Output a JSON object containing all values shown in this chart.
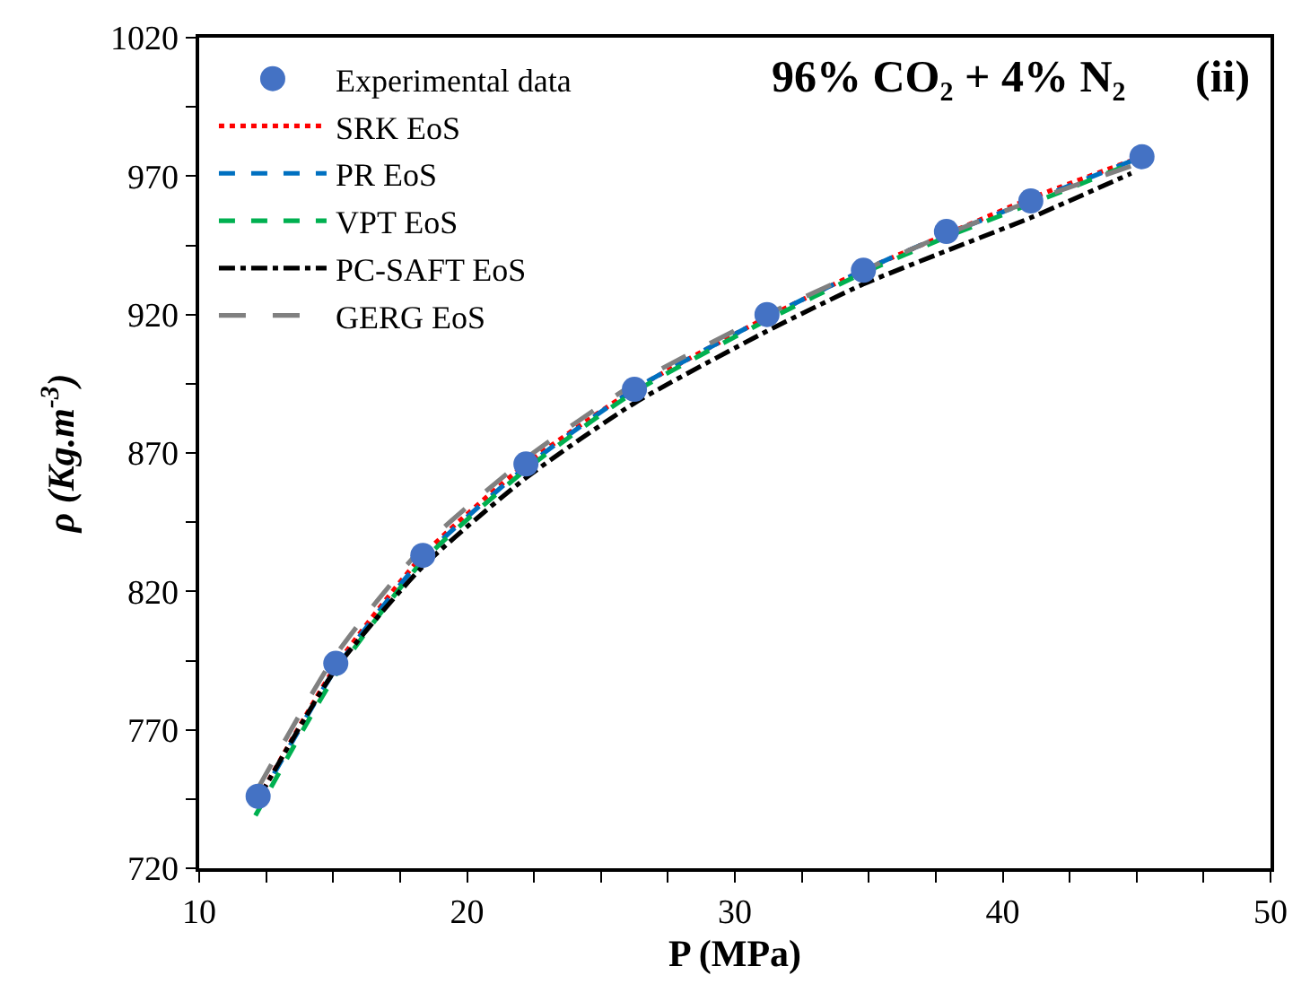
{
  "chart_data": {
    "type": "line",
    "xlabel": "P (MPa)",
    "ylabel": "ρ (Kg.m$^{-3}$)",
    "annotations": [
      "96% CO₂ + 4% N₂",
      "(ii)"
    ],
    "xlim": [
      10,
      50
    ],
    "xticks": [
      10,
      {
        "value": 12.5,
        "label": null
      },
      {
        "value": 15,
        "label": null
      },
      {
        "value": 17.5,
        "label": null
      },
      20,
      {
        "value": 22.5,
        "label": null
      },
      {
        "value": 25,
        "label": null
      },
      {
        "value": 27.5,
        "label": null
      },
      30,
      {
        "value": 32.5,
        "label": null
      },
      {
        "value": 35,
        "label": null
      },
      {
        "value": 37.5,
        "label": null
      },
      40,
      {
        "value": 42.5,
        "label": null
      },
      {
        "value": 45,
        "label": null
      },
      {
        "value": 47.5,
        "label": null
      },
      50
    ],
    "ylim": [
      720,
      1020
    ],
    "yticks": [
      720,
      {
        "value": 745,
        "label": null
      },
      770,
      {
        "value": 795,
        "label": null
      },
      820,
      {
        "value": 845,
        "label": null
      },
      870,
      {
        "value": 895,
        "label": null
      },
      920,
      {
        "value": 945,
        "label": null
      },
      970,
      {
        "value": 995,
        "label": null
      },
      1020
    ],
    "legend": "top left",
    "series": [
      {
        "name": "Experimental data",
        "type": "scatter",
        "marker": "circle",
        "color": "#4472c4",
        "x": [
          12.2,
          15.1,
          18.35,
          22.2,
          26.25,
          31.2,
          34.8,
          37.9,
          41.05,
          45.2
        ],
        "values": [
          746,
          794,
          833,
          866,
          893,
          920,
          936,
          950,
          961,
          977
        ]
      },
      {
        "name": "SRK EoS",
        "color": "#ff0000",
        "line_style": "dotted",
        "x": [
          12.2,
          15.1,
          18.35,
          22.2,
          26.25,
          31.2,
          34.8,
          37.9,
          41.05,
          45.2
        ],
        "values": [
          745,
          793,
          833,
          866,
          893,
          919,
          936,
          949,
          962,
          977
        ]
      },
      {
        "name": "PR EoS",
        "color": "#0070c0",
        "line_style": "dashed",
        "x": [
          12.2,
          15.1,
          18.35,
          22.2,
          26.25,
          31.2,
          34.8,
          37.9,
          41.05,
          45.2
        ],
        "values": [
          744,
          792,
          832,
          865,
          893,
          919,
          936,
          949,
          961,
          977
        ]
      },
      {
        "name": "VPT EoS",
        "color": "#00b050",
        "line_style": "dashed",
        "x": [
          12.1,
          15.1,
          18.35,
          22.2,
          26.25,
          31.2,
          34.8,
          37.9,
          41.05,
          45.2
        ],
        "values": [
          739,
          790,
          831,
          864,
          892,
          918,
          935,
          948,
          960,
          976
        ]
      },
      {
        "name": "PC-SAFT EoS",
        "color": "#000000",
        "line_style": "dashdot",
        "x": [
          12.2,
          15.1,
          18.35,
          22.2,
          26.25,
          31.2,
          34.8,
          37.9,
          41.05,
          44.8
        ],
        "values": [
          745,
          792,
          829,
          861,
          888,
          914,
          931,
          943,
          955,
          971
        ]
      },
      {
        "name": "GERG EoS",
        "color": "#808080",
        "line_style": "longdash",
        "x": [
          12.2,
          15.1,
          18.35,
          22.2,
          26.25,
          31.2,
          34.8,
          37.9,
          41.05,
          45.2
        ],
        "values": [
          749,
          797,
          836,
          868,
          895,
          920,
          936,
          949,
          961,
          975
        ]
      }
    ]
  }
}
